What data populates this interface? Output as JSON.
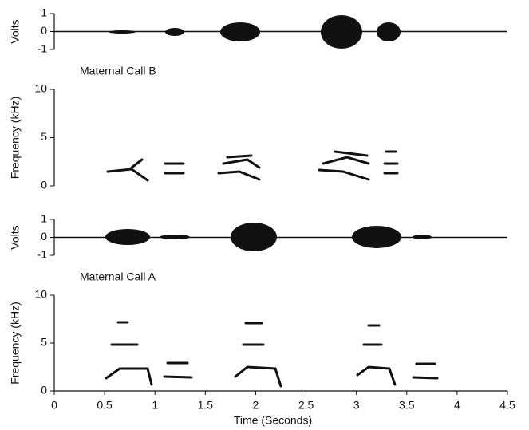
{
  "chart_data": [
    {
      "type": "waveform",
      "ylabel": "Volts",
      "ylim": [
        -1,
        1
      ],
      "yticks": [
        -1,
        0,
        1
      ],
      "xlim": [
        0,
        4.5
      ]
    },
    {
      "type": "spectrogram",
      "annotation": "Maternal Call B",
      "ylabel": "Frequency (kHz)",
      "ylim": [
        0,
        10
      ],
      "yticks": [
        0,
        5,
        10
      ],
      "xlim": [
        0,
        4.5
      ]
    },
    {
      "type": "waveform",
      "ylabel": "Volts",
      "ylim": [
        -1,
        1
      ],
      "yticks": [
        -1,
        0,
        1
      ],
      "xlim": [
        0,
        4.5
      ]
    },
    {
      "type": "spectrogram",
      "annotation": "Maternal Call A",
      "ylabel": "Frequency (kHz)",
      "xlabel": "Time (Seconds)",
      "ylim": [
        0,
        10
      ],
      "yticks": [
        0,
        5,
        10
      ],
      "xlim": [
        0,
        4.5
      ],
      "xticks": [
        0,
        0.5,
        1,
        1.5,
        2,
        2.5,
        3,
        3.5,
        4,
        4.5
      ]
    }
  ]
}
